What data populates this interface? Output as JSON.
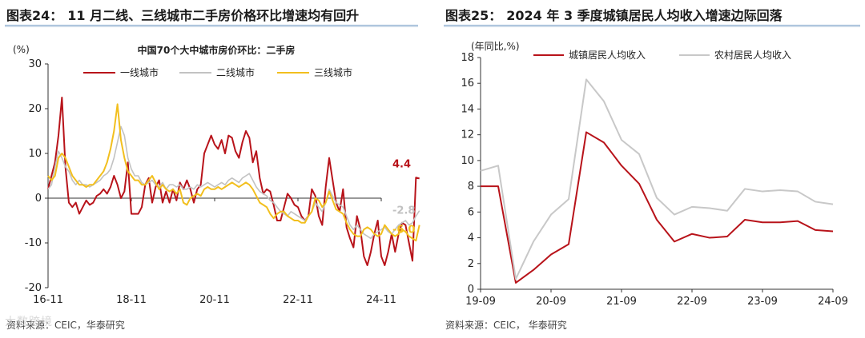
{
  "left_panel": {
    "figure_label": "图表24：",
    "title": "11 月二线、三线城市二手房价格环比增速均有回升",
    "source": "资料来源：CEIC，华泰研究",
    "watermark": "大数跨境"
  },
  "right_panel": {
    "figure_label": "图表25：",
    "title": "2024 年 3 季度城镇居民人均收入增速边际回落",
    "source": "资料来源：CEIC， 华泰研究"
  },
  "chart_data": [
    {
      "type": "line",
      "title": "中国70个大中城市房价环比：二手房",
      "ylabel": "(%)",
      "ylim": [
        -20,
        30
      ],
      "yticks": [
        -20,
        -10,
        0,
        10,
        20,
        30
      ],
      "xlim": [
        0,
        96
      ],
      "xtick_labels": [
        "16-11",
        "18-11",
        "20-11",
        "22-11",
        "24-11"
      ],
      "xtick_positions": [
        0,
        24,
        48,
        72,
        96
      ],
      "series": [
        {
          "name": "一线城市",
          "color": "#b8131a",
          "end_label": "4.4",
          "values": [
            2.0,
            5.0,
            8.0,
            14.0,
            22.5,
            7.0,
            -1.0,
            -2.0,
            -1.0,
            -3.5,
            -2.0,
            -0.5,
            -1.5,
            -1.0,
            0.5,
            1.0,
            2.0,
            1.0,
            2.5,
            5.0,
            3.0,
            0.0,
            1.5,
            8.0,
            -3.5,
            -3.5,
            -3.5,
            -2.0,
            3.0,
            4.5,
            -1.0,
            2.5,
            4.0,
            -1.0,
            1.5,
            -1.0,
            2.0,
            -0.5,
            3.5,
            2.0,
            4.0,
            2.0,
            -1.0,
            2.0,
            3.0,
            10.0,
            12.0,
            14.0,
            12.0,
            11.0,
            13.0,
            10.0,
            14.0,
            13.5,
            10.5,
            9.0,
            12.5,
            15.0,
            13.5,
            8.0,
            10.5,
            4.5,
            1.0,
            2.0,
            1.5,
            -1.5,
            -5.0,
            -5.0,
            -2.0,
            1.0,
            0.0,
            -1.5,
            -2.0,
            -4.0,
            -5.0,
            -4.0,
            2.0,
            0.5,
            -4.0,
            -6.0,
            2.5,
            9.0,
            4.0,
            -1.0,
            -3.0,
            2.0,
            -6.5,
            -9.0,
            -11.0,
            -4.0,
            -7.0,
            -13.0,
            -15.0,
            -12.0,
            -8.0,
            -5.0,
            -13.0,
            -15.0,
            -12.0,
            -8.0,
            -12.0,
            -8.0,
            -5.5,
            -6.0,
            -10.0,
            -14.0,
            4.6,
            4.4
          ]
        },
        {
          "name": "二线城市",
          "color": "#c2c2c2",
          "end_label": "-2.8",
          "values": [
            2.0,
            3.0,
            7.0,
            10.5,
            9.0,
            7.0,
            6.0,
            4.0,
            3.0,
            4.0,
            3.0,
            3.0,
            2.5,
            3.0,
            3.5,
            4.0,
            5.0,
            5.5,
            6.5,
            9.0,
            12.5,
            16.0,
            14.0,
            9.0,
            6.5,
            5.0,
            5.0,
            3.5,
            3.0,
            3.5,
            4.0,
            3.0,
            2.5,
            3.5,
            2.0,
            3.0,
            3.0,
            2.5,
            3.0,
            2.0,
            2.0,
            2.5,
            2.0,
            3.0,
            2.5,
            3.0,
            3.5,
            3.0,
            2.5,
            3.0,
            3.5,
            3.0,
            4.0,
            4.5,
            4.0,
            3.5,
            4.5,
            5.0,
            5.5,
            4.0,
            2.5,
            1.5,
            1.0,
            0.5,
            -0.5,
            -1.0,
            -2.0,
            -3.0,
            -3.5,
            -4.0,
            -3.0,
            -3.5,
            -4.0,
            -4.5,
            -5.0,
            -4.0,
            -3.0,
            -1.0,
            -2.0,
            -3.0,
            -1.0,
            2.0,
            0.5,
            -1.0,
            -1.5,
            -2.0,
            -4.0,
            -6.0,
            -7.0,
            -6.0,
            -7.0,
            -8.0,
            -8.5,
            -9.0,
            -8.0,
            -7.5,
            -7.0,
            -6.5,
            -7.5,
            -8.0,
            -7.0,
            -6.0,
            -5.5,
            -5.0,
            -6.0,
            -5.5,
            -4.0,
            -2.8
          ]
        },
        {
          "name": "三线城市",
          "color": "#f2bf1e",
          "end_label": "-6.0",
          "values": [
            5.0,
            4.0,
            5.0,
            9.0,
            10.0,
            9.0,
            7.0,
            5.0,
            4.0,
            3.0,
            3.0,
            2.5,
            3.0,
            3.0,
            4.0,
            5.0,
            6.0,
            8.0,
            11.0,
            15.0,
            21.0,
            13.0,
            9.0,
            6.0,
            5.0,
            4.0,
            4.0,
            3.0,
            3.0,
            4.0,
            5.0,
            3.5,
            2.0,
            3.0,
            2.0,
            1.5,
            2.0,
            1.0,
            2.0,
            -1.0,
            -1.5,
            0.0,
            0.5,
            1.0,
            0.5,
            2.0,
            2.5,
            2.0,
            2.0,
            2.5,
            2.0,
            2.5,
            3.0,
            3.5,
            3.0,
            2.5,
            3.0,
            3.5,
            3.0,
            2.0,
            0.5,
            -1.0,
            -1.5,
            -2.0,
            -3.5,
            -4.5,
            -3.5,
            -3.0,
            -3.0,
            -4.0,
            -4.5,
            -5.0,
            -5.0,
            -5.5,
            -5.5,
            -4.0,
            -3.0,
            0.0,
            -0.5,
            -2.0,
            -1.0,
            1.5,
            -0.5,
            -2.5,
            -3.0,
            -3.5,
            -5.5,
            -7.0,
            -8.0,
            -8.5,
            -8.5,
            -7.0,
            -6.5,
            -7.0,
            -8.0,
            -8.5,
            -8.0,
            -6.0,
            -7.0,
            -8.0,
            -8.5,
            -8.0,
            -7.0,
            -7.5,
            -8.5,
            -9.0,
            -9.5,
            -6.0
          ]
        }
      ]
    },
    {
      "type": "line",
      "title": "",
      "ylabel": "(年同比,%)",
      "ylim": [
        0,
        18
      ],
      "yticks": [
        0,
        2,
        4,
        6,
        8,
        10,
        12,
        14,
        16,
        18
      ],
      "xlim": [
        0,
        20
      ],
      "xtick_labels": [
        "19-09",
        "20-09",
        "21-09",
        "22-09",
        "23-09",
        "24-09"
      ],
      "xtick_positions": [
        0,
        4,
        8,
        12,
        16,
        20
      ],
      "series": [
        {
          "name": "城镇居民人均收入",
          "color": "#b8131a",
          "values": [
            8.0,
            8.0,
            0.5,
            1.5,
            2.7,
            3.5,
            12.2,
            11.4,
            9.6,
            8.2,
            5.4,
            3.7,
            4.3,
            4.0,
            4.1,
            5.4,
            5.2,
            5.2,
            5.3,
            4.6,
            4.5
          ]
        },
        {
          "name": "农村居民人均收入",
          "color": "#c8c8c8",
          "values": [
            9.2,
            9.6,
            0.8,
            3.7,
            5.8,
            7.0,
            16.3,
            14.6,
            11.6,
            10.5,
            7.1,
            5.8,
            6.4,
            6.3,
            6.1,
            7.8,
            7.6,
            7.7,
            7.6,
            6.8,
            6.6
          ]
        }
      ]
    }
  ]
}
